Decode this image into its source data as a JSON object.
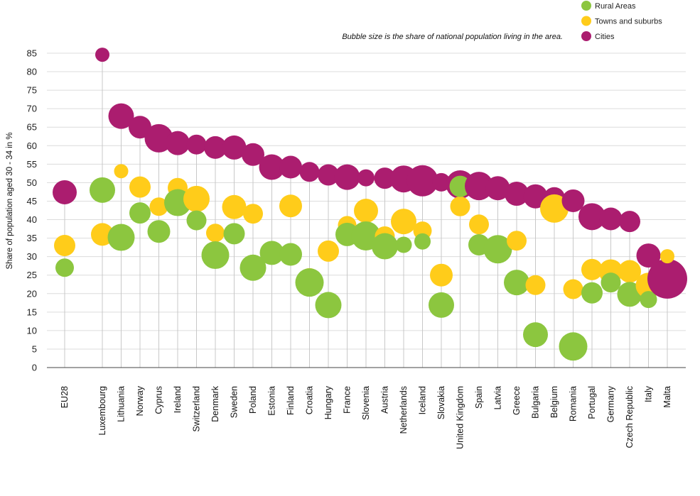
{
  "chart_data": {
    "type": "scatter",
    "subtype": "bubble-dot-plot",
    "title": "",
    "xlabel": "",
    "ylabel": "Share of population aged 30 - 34 in %",
    "note": "Bubble size is the share of national population living in the area.",
    "ylim": [
      0,
      85
    ],
    "yticks": [
      0,
      5,
      10,
      15,
      20,
      25,
      30,
      35,
      40,
      45,
      50,
      55,
      60,
      65,
      70,
      75,
      80,
      85
    ],
    "grid": true,
    "legend_position": "top-right",
    "categories": [
      "EU28",
      "Luxembourg",
      "Lithuania",
      "Norway",
      "Cyprus",
      "Ireland",
      "Switzerland",
      "Denmark",
      "Sweden",
      "Poland",
      "Estonia",
      "Finland",
      "Croatia",
      "Hungary",
      "France",
      "Slovenia",
      "Austria",
      "Netherlands",
      "Iceland",
      "Slovakia",
      "United Kingdom",
      "Spain",
      "Latvia",
      "Greece",
      "Bulgaria",
      "Belgium",
      "Romania",
      "Portugal",
      "Germany",
      "Czech Republic",
      "Italy",
      "Malta"
    ],
    "series": [
      {
        "name": "Rural Areas",
        "color": "#8cc63f",
        "values": [
          27,
          48,
          35.2,
          41.8,
          36.8,
          44.6,
          39.8,
          30.4,
          36.2,
          27,
          31,
          30.6,
          23,
          16.9,
          36,
          35.6,
          32.8,
          33.2,
          34.1,
          16.9,
          49,
          33.2,
          32,
          23,
          8.9,
          null,
          5.7,
          20.2,
          23,
          19.8,
          18.4,
          null
        ],
        "sizes": [
          26,
          36,
          38,
          30,
          32,
          38,
          28,
          39,
          30,
          37,
          34,
          32,
          40,
          37,
          33,
          41,
          37,
          23,
          23,
          36,
          30,
          30,
          40,
          36,
          35,
          null,
          40,
          30,
          28,
          35,
          24,
          null
        ]
      },
      {
        "name": "Towns and suburbs",
        "color": "#ffcc1a",
        "values": [
          33,
          36,
          53.1,
          48.8,
          43.5,
          48.6,
          45.6,
          36.4,
          43.4,
          41.6,
          30.8,
          43.7,
          24,
          31.5,
          38.5,
          42.4,
          35.5,
          39.5,
          37,
          25,
          43.6,
          38.7,
          31.8,
          34.3,
          22.3,
          43,
          21.2,
          26.5,
          26,
          26,
          22.2,
          30.1
        ],
        "sizes": [
          30,
          32,
          20,
          30,
          26,
          28,
          37,
          26,
          34,
          28,
          22,
          32,
          30,
          30,
          26,
          34,
          28,
          36,
          26,
          32,
          28,
          28,
          18,
          28,
          28,
          40,
          28,
          30,
          34,
          32,
          36,
          20
        ]
      },
      {
        "name": "Cities",
        "color": "#ab1d6f",
        "values": [
          47.4,
          84.6,
          68,
          65,
          62,
          60.7,
          60.3,
          59.5,
          59.5,
          57.6,
          54.2,
          54.2,
          52.9,
          52.1,
          51.5,
          51.3,
          51.2,
          51,
          50.5,
          50.1,
          49.5,
          49.1,
          48.5,
          47,
          46.3,
          45.9,
          45.1,
          40.8,
          40.2,
          39.5,
          30.3,
          24
        ],
        "sizes": [
          34,
          20,
          36,
          32,
          40,
          34,
          28,
          32,
          34,
          32,
          36,
          32,
          28,
          30,
          36,
          24,
          30,
          38,
          44,
          26,
          40,
          40,
          34,
          34,
          34,
          30,
          32,
          38,
          32,
          30,
          34,
          56
        ]
      }
    ]
  }
}
